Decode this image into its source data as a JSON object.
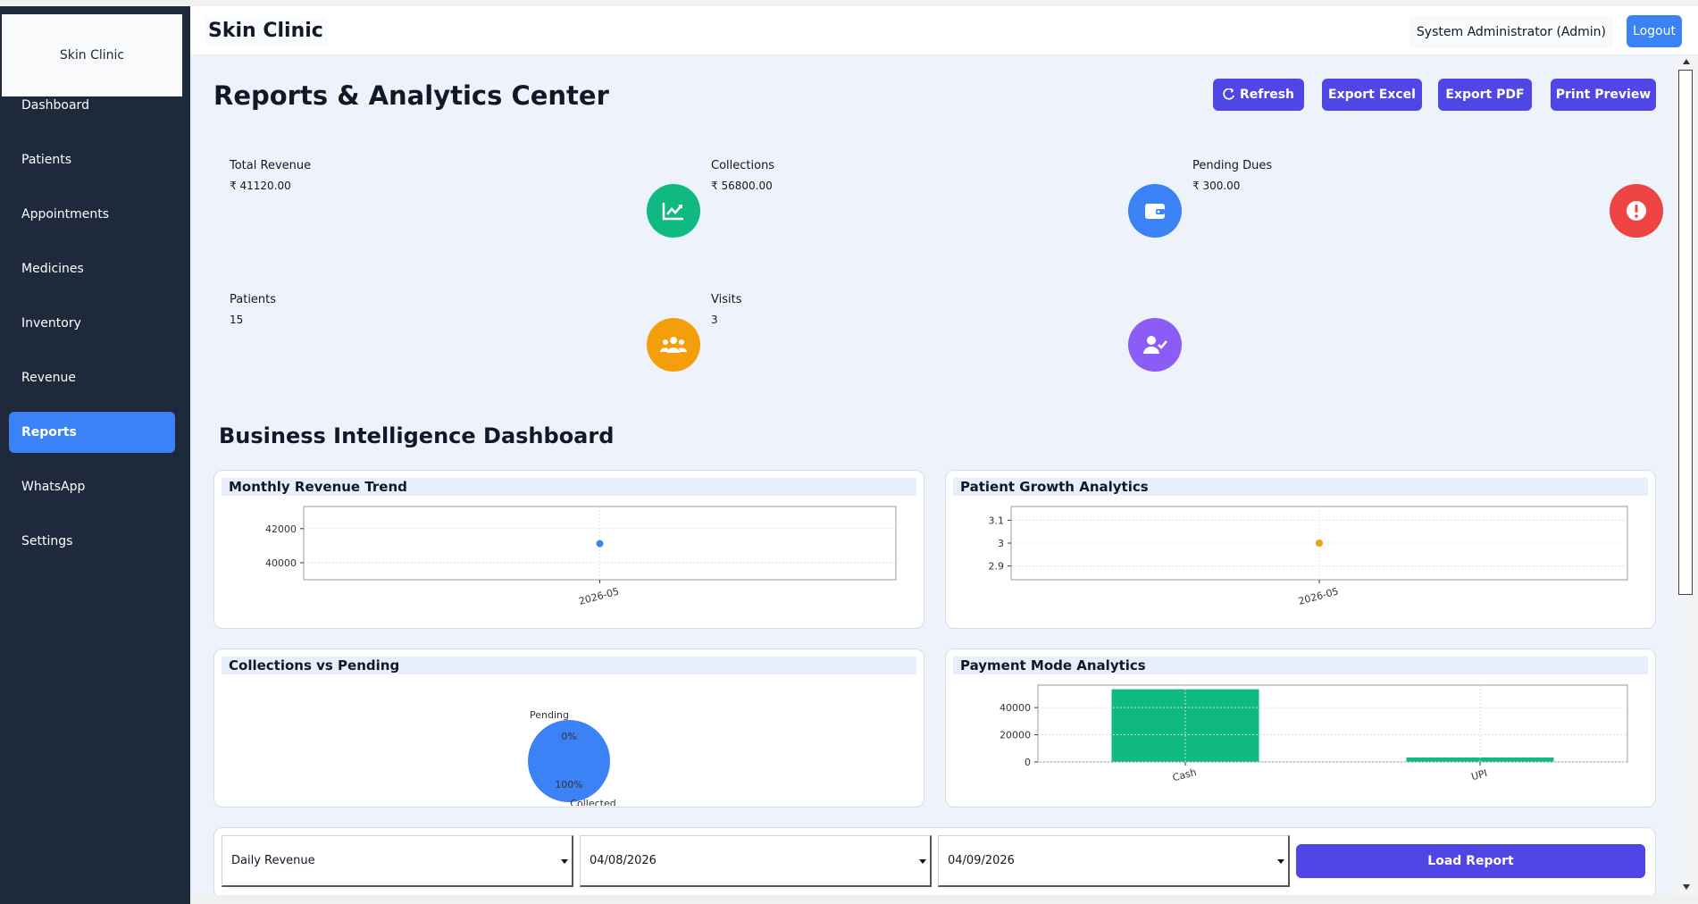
{
  "sidebar": {
    "brand": "Skin Clinic",
    "items": [
      {
        "label": "Dashboard",
        "active": false
      },
      {
        "label": "Patients",
        "active": false
      },
      {
        "label": "Appointments",
        "active": false
      },
      {
        "label": "Medicines",
        "active": false
      },
      {
        "label": "Inventory",
        "active": false
      },
      {
        "label": "Revenue",
        "active": false
      },
      {
        "label": "Reports",
        "active": true
      },
      {
        "label": "WhatsApp",
        "active": false
      },
      {
        "label": "Settings",
        "active": false
      }
    ]
  },
  "header": {
    "title": "Skin Clinic",
    "user": "System Administrator (Admin)",
    "logout_label": "Logout"
  },
  "page": {
    "title": "Reports & Analytics Center",
    "actions": {
      "refresh": "Refresh",
      "export_excel": "Export Excel",
      "export_pdf": "Export PDF",
      "print_preview": "Print Preview"
    }
  },
  "kpis": [
    {
      "label": "Total Revenue",
      "value": "₹ 41120.00",
      "icon": "chart-line-icon",
      "color": "#10b981"
    },
    {
      "label": "Collections",
      "value": "₹ 56800.00",
      "icon": "wallet-icon",
      "color": "#3b82f6"
    },
    {
      "label": "Pending Dues",
      "value": "₹ 300.00",
      "icon": "exclamation-circle-icon",
      "color": "#ef4444"
    },
    {
      "label": "Patients",
      "value": "15",
      "icon": "users-icon",
      "color": "#f59e0b"
    },
    {
      "label": "Visits",
      "value": "3",
      "icon": "user-check-icon",
      "color": "#8b5cf6"
    }
  ],
  "bi": {
    "title": "Business Intelligence Dashboard",
    "cards": {
      "monthly_revenue": "Monthly Revenue Trend",
      "patient_growth": "Patient Growth Analytics",
      "collections_pending": "Collections vs Pending",
      "payment_mode": "Payment Mode Analytics"
    }
  },
  "chart_data": [
    {
      "type": "line",
      "title": "Monthly Revenue Trend",
      "x": [
        "2026-05"
      ],
      "series": [
        {
          "values": [
            41120
          ]
        }
      ],
      "yticks": [
        40000,
        42000
      ],
      "ylim": [
        39000,
        43300
      ],
      "color": "#3b82f6",
      "grid": true
    },
    {
      "type": "line",
      "title": "Patient Growth Analytics",
      "x": [
        "2026-05"
      ],
      "series": [
        {
          "values": [
            3
          ]
        }
      ],
      "yticks": [
        2.9,
        3.0,
        3.1
      ],
      "ylim": [
        2.84,
        3.16
      ],
      "color": "#f59e0b",
      "grid": true
    },
    {
      "type": "pie",
      "title": "Collections vs Pending",
      "categories": [
        "Pending",
        "Collected"
      ],
      "values": [
        0,
        100
      ],
      "labels": [
        "0%",
        "100%"
      ],
      "color": "#3b82f6"
    },
    {
      "type": "bar",
      "title": "Payment Mode Analytics",
      "categories": [
        "Cash",
        "UPI"
      ],
      "values": [
        53500,
        3300
      ],
      "yticks": [
        0,
        20000,
        40000
      ],
      "ylim": [
        0,
        56500
      ],
      "color": "#10b981",
      "grid": true
    }
  ],
  "filters": {
    "report_type": "Daily Revenue",
    "from_date": "04/08/2026",
    "to_date": "04/09/2026",
    "load_label": "Load Report"
  }
}
